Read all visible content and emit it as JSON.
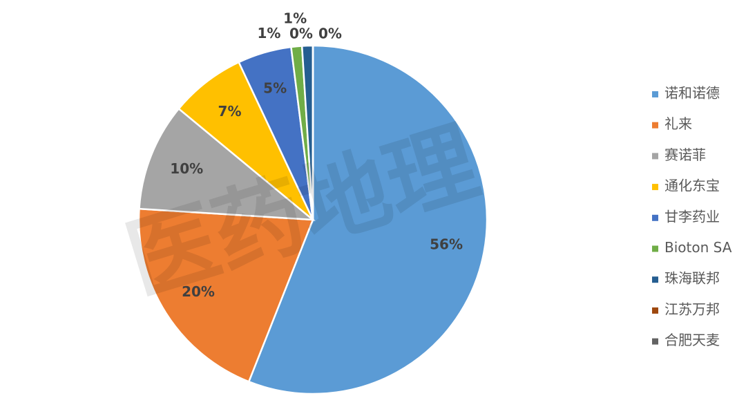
{
  "chart_data": {
    "type": "pie",
    "watermark": "医药地理",
    "categories": [
      "诺和诺德",
      "礼来",
      "赛诺菲",
      "通化东宝",
      "甘李药业",
      "Bioton SA",
      "珠海联邦",
      "江苏万邦",
      "合肥天麦"
    ],
    "values": [
      56,
      20,
      10,
      7,
      5,
      1,
      1,
      0,
      0
    ],
    "value_labels": [
      "56%",
      "20%",
      "10%",
      "7%",
      "5%",
      "1%",
      "1%",
      "0%",
      "0%"
    ],
    "colors": [
      "#5b9bd5",
      "#ed7d31",
      "#a5a5a5",
      "#ffc000",
      "#4472c4",
      "#70ad47",
      "#255e91",
      "#9e480e",
      "#636363"
    ],
    "legend": "right"
  }
}
